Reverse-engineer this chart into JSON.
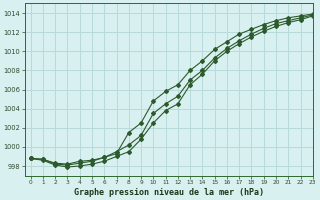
{
  "title": "Graphe pression niveau de la mer (hPa)",
  "background_color": "#d8f0f0",
  "grid_color": "#b8dada",
  "line_color": "#2d5a2d",
  "xlim": [
    -0.5,
    23
  ],
  "ylim": [
    997,
    1015
  ],
  "xticks": [
    0,
    1,
    2,
    3,
    4,
    5,
    6,
    7,
    8,
    9,
    10,
    11,
    12,
    13,
    14,
    15,
    16,
    17,
    18,
    19,
    20,
    21,
    22,
    23
  ],
  "yticks": [
    998,
    1000,
    1002,
    1004,
    1006,
    1008,
    1010,
    1012,
    1014
  ],
  "series1_x": [
    0,
    1,
    2,
    3,
    4,
    5,
    6,
    7,
    8,
    9,
    10,
    11,
    12,
    13,
    14,
    15,
    16,
    17,
    18,
    19,
    20,
    21,
    22,
    23
  ],
  "series1_y": [
    998.8,
    998.7,
    998.3,
    998.2,
    998.5,
    998.6,
    998.9,
    999.3,
    1001.5,
    1002.5,
    1004.8,
    1005.8,
    1006.5,
    1008.0,
    1009.0,
    1010.2,
    1011.0,
    1011.8,
    1012.3,
    1012.8,
    1013.2,
    1013.5,
    1013.7,
    1013.9
  ],
  "series2_x": [
    0,
    1,
    2,
    3,
    4,
    5,
    6,
    7,
    8,
    9,
    10,
    11,
    12,
    13,
    14,
    15,
    16,
    17,
    18,
    19,
    20,
    21,
    22,
    23
  ],
  "series2_y": [
    998.8,
    998.7,
    998.2,
    998.1,
    998.3,
    998.5,
    998.9,
    999.5,
    1000.2,
    1001.2,
    1003.5,
    1004.5,
    1005.3,
    1007.0,
    1008.0,
    1009.3,
    1010.3,
    1011.1,
    1011.8,
    1012.4,
    1012.9,
    1013.2,
    1013.5,
    1013.8
  ],
  "series3_x": [
    0,
    1,
    2,
    3,
    4,
    5,
    6,
    7,
    8,
    9,
    10,
    11,
    12,
    13,
    14,
    15,
    16,
    17,
    18,
    19,
    20,
    21,
    22,
    23
  ],
  "series3_y": [
    998.8,
    998.6,
    998.1,
    997.9,
    998.0,
    998.2,
    998.5,
    999.0,
    999.5,
    1000.8,
    1002.5,
    1003.8,
    1004.5,
    1006.5,
    1007.6,
    1009.0,
    1010.0,
    1010.8,
    1011.5,
    1012.1,
    1012.6,
    1013.0,
    1013.3,
    1013.7
  ]
}
